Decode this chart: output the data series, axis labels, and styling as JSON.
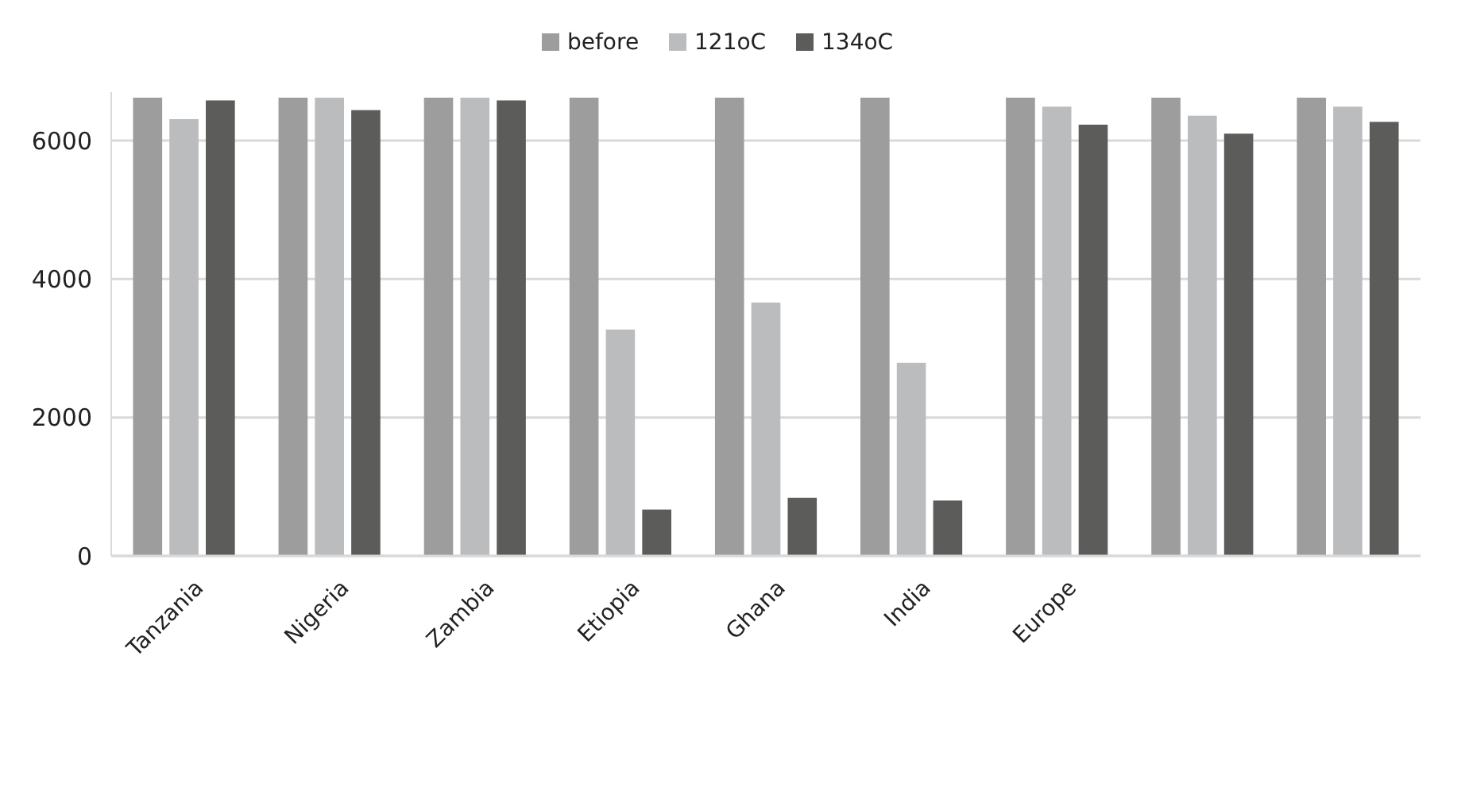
{
  "chart_data": {
    "type": "bar",
    "categories": [
      "Tanzania",
      "Nigeria",
      "Zambia",
      "Etiopia",
      "Ghana",
      "India",
      "Europe",
      null,
      null
    ],
    "series": [
      {
        "name": "before",
        "color": "#9d9d9d",
        "values": [
          6620,
          6620,
          6620,
          6620,
          6620,
          6620,
          6620,
          6620,
          6620
        ]
      },
      {
        "name": "121oC",
        "color": "#bbbcbe",
        "values": [
          6310,
          6620,
          6620,
          3270,
          3660,
          2790,
          6490,
          6360,
          6490
        ]
      },
      {
        "name": "134oC",
        "color": "#5c5c5a",
        "values": [
          6580,
          6440,
          6580,
          670,
          840,
          800,
          6230,
          6100,
          6270
        ]
      }
    ],
    "ylim": [
      0,
      6700
    ],
    "yticks": [
      0,
      2000,
      4000,
      6000
    ],
    "grid": "y",
    "legend": "top"
  }
}
